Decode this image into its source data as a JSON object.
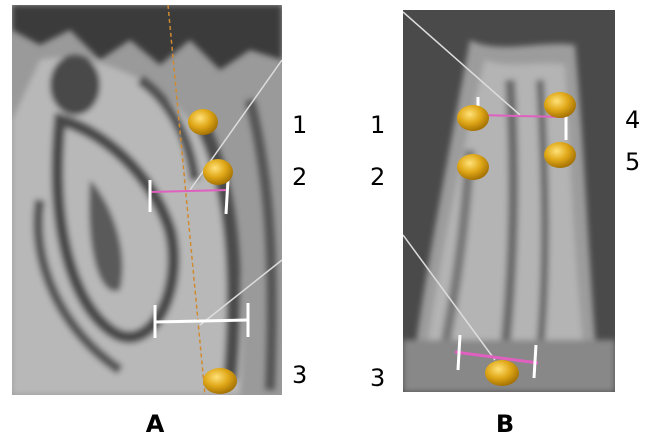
{
  "panels": [
    {
      "label": "A",
      "markers": [
        "1",
        "2",
        "3"
      ]
    },
    {
      "label": "B",
      "markers": [
        "1",
        "2",
        "3",
        "4",
        "5"
      ]
    }
  ]
}
